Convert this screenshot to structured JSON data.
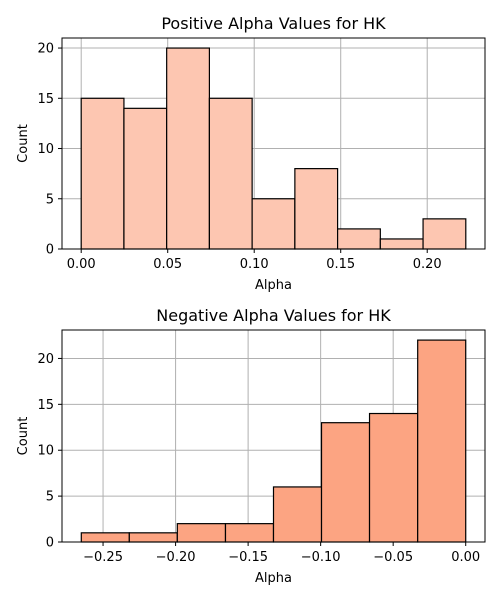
{
  "chart_data": [
    {
      "type": "bar",
      "title": "Positive Alpha Values for HK",
      "xlabel": "Alpha",
      "ylabel": "Count",
      "bin_edges": [
        0.0,
        0.0247,
        0.0494,
        0.0741,
        0.0988,
        0.1235,
        0.1482,
        0.1729,
        0.1976,
        0.2223
      ],
      "values": [
        15,
        14,
        20,
        15,
        5,
        8,
        2,
        1,
        3
      ],
      "xlim": [
        -0.0111,
        0.2334
      ],
      "ylim": [
        0,
        21
      ],
      "xticks": [
        0.0,
        0.05,
        0.1,
        0.15,
        0.2
      ],
      "xtick_labels": [
        "0.00",
        "0.05",
        "0.10",
        "0.15",
        "0.20"
      ],
      "yticks": [
        0,
        5,
        10,
        15,
        20
      ],
      "ytick_labels": [
        "0",
        "5",
        "10",
        "15",
        "20"
      ],
      "bar_color": "#fdc6b1",
      "grid": true
    },
    {
      "type": "bar",
      "title": "Negative Alpha Values for HK",
      "xlabel": "Alpha",
      "ylabel": "Count",
      "bin_edges": [
        -0.265,
        -0.2319,
        -0.1988,
        -0.1656,
        -0.1325,
        -0.0994,
        -0.0663,
        -0.0331,
        0.0
      ],
      "values": [
        1,
        1,
        2,
        2,
        6,
        13,
        14,
        22
      ],
      "xlim": [
        -0.2783,
        0.0133
      ],
      "ylim": [
        0,
        23.1
      ],
      "xticks": [
        -0.25,
        -0.2,
        -0.15,
        -0.1,
        -0.05,
        0.0
      ],
      "xtick_labels": [
        "−0.25",
        "−0.20",
        "−0.15",
        "−0.10",
        "−0.05",
        "0.00"
      ],
      "yticks": [
        0,
        5,
        10,
        15,
        20
      ],
      "ytick_labels": [
        "0",
        "5",
        "10",
        "15",
        "20"
      ],
      "bar_color": "#fca482",
      "grid": true
    }
  ]
}
